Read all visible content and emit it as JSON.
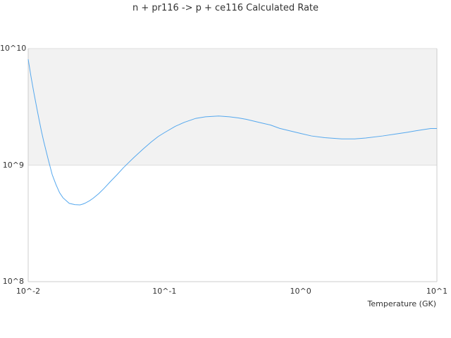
{
  "chart_data": {
    "type": "line",
    "title": "n + pr116 -> p + ce116 Calculated Rate",
    "xlabel": "Temperature (GK)",
    "ylabel": "",
    "x_scale": "log",
    "y_scale": "log",
    "xlim": [
      0.01,
      10
    ],
    "ylim": [
      100000000,
      10000000000
    ],
    "x_ticks": [
      "10^-2",
      "10^-1",
      "10^0",
      "10^1"
    ],
    "y_ticks": [
      "10^10",
      "10^9",
      "10^8"
    ],
    "shaded_band": [
      1000000000,
      10000000000
    ],
    "colors": {
      "line": "#55a8ee",
      "band": "#f2f2f2",
      "grid": "#dddddd",
      "axis": "#cccccc"
    },
    "series": [
      {
        "x": [
          0.01,
          0.0105,
          0.011,
          0.0115,
          0.012,
          0.0125,
          0.013,
          0.014,
          0.015,
          0.016,
          0.017,
          0.018,
          0.02,
          0.022,
          0.024,
          0.025,
          0.026,
          0.028,
          0.03,
          0.033,
          0.036,
          0.04,
          0.045,
          0.05,
          0.055,
          0.06,
          0.07,
          0.08,
          0.09,
          0.1,
          0.12,
          0.14,
          0.17,
          0.2,
          0.25,
          0.3,
          0.35,
          0.4,
          0.5,
          0.6,
          0.7,
          0.8,
          1.0,
          1.2,
          1.5,
          2.0,
          2.5,
          3.0,
          4.0,
          5.0,
          6.0,
          7.0,
          8.0,
          9.0,
          10.0
        ],
        "y": [
          8100000000,
          5700000000,
          4200000000,
          3200000000,
          2480000000,
          1960000000,
          1600000000,
          1130000000,
          830000000,
          680000000,
          580000000,
          525000000,
          470000000,
          458000000,
          456000000,
          462000000,
          470000000,
          492000000,
          520000000,
          570000000,
          630000000,
          720000000,
          830000000,
          950000000,
          1060000000,
          1170000000,
          1380000000,
          1580000000,
          1760000000,
          1900000000,
          2150000000,
          2330000000,
          2520000000,
          2600000000,
          2640000000,
          2600000000,
          2540000000,
          2470000000,
          2320000000,
          2210000000,
          2070000000,
          1990000000,
          1870000000,
          1780000000,
          1720000000,
          1680000000,
          1680000000,
          1710000000,
          1780000000,
          1850000000,
          1910000000,
          1970000000,
          2020000000,
          2060000000,
          2060000000
        ]
      }
    ]
  }
}
